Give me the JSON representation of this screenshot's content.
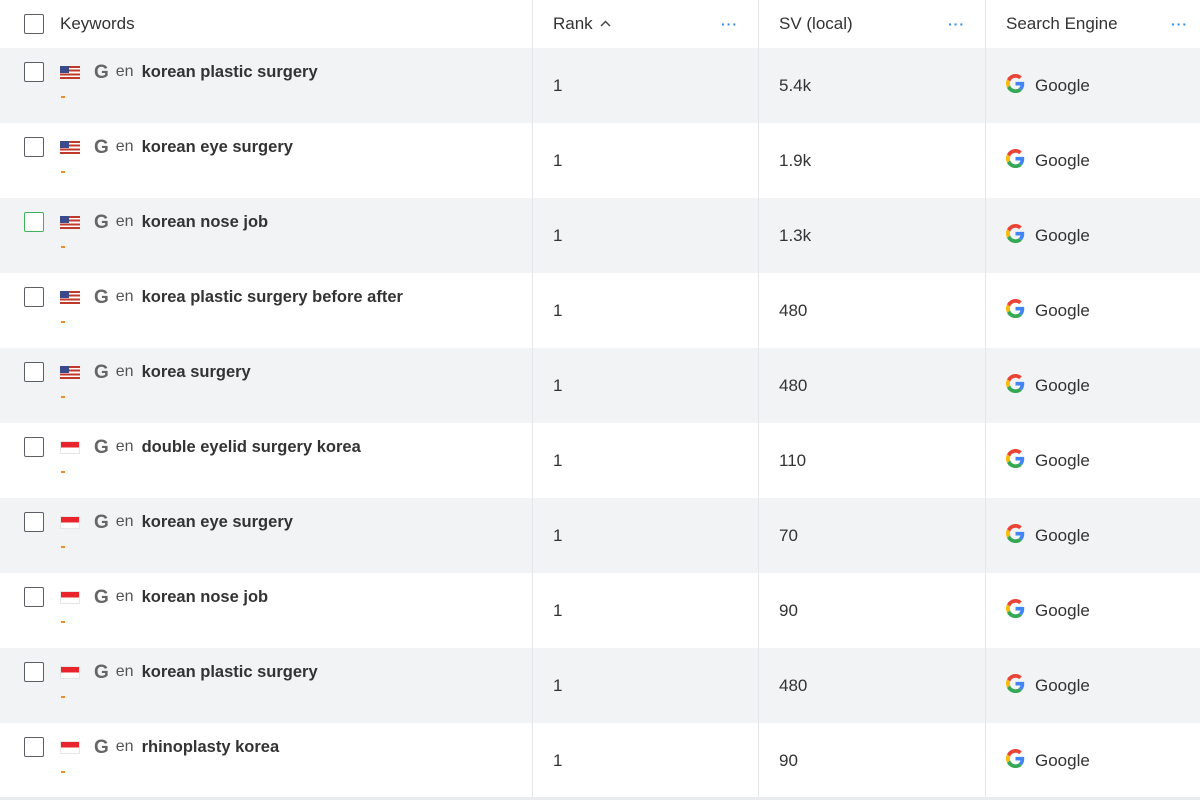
{
  "header": {
    "keywords": "Keywords",
    "rank": "Rank",
    "rank_sort_icon": "chevron-up-icon",
    "sv": "SV (local)",
    "engine": "Search Engine",
    "more_label": "···"
  },
  "colors": {
    "accent": "#2f8fe8",
    "row_shade": "#f2f3f5",
    "dash": "#f08a2c",
    "checkbox_hover": "#3db35a"
  },
  "rows": [
    {
      "flag": "us",
      "engine_mark": "G",
      "lang": "en",
      "keyword": "korean plastic surgery",
      "dash": "-",
      "rank": "1",
      "sv": "5.4k",
      "engine": "Google",
      "shaded": true
    },
    {
      "flag": "us",
      "engine_mark": "G",
      "lang": "en",
      "keyword": "korean eye surgery",
      "dash": "-",
      "rank": "1",
      "sv": "1.9k",
      "engine": "Google",
      "shaded": false
    },
    {
      "flag": "us",
      "engine_mark": "G",
      "lang": "en",
      "keyword": "korean nose job",
      "dash": "-",
      "rank": "1",
      "sv": "1.3k",
      "engine": "Google",
      "shaded": true,
      "hover": true
    },
    {
      "flag": "us",
      "engine_mark": "G",
      "lang": "en",
      "keyword": "korea plastic surgery before after",
      "dash": "-",
      "rank": "1",
      "sv": "480",
      "engine": "Google",
      "shaded": false
    },
    {
      "flag": "us",
      "engine_mark": "G",
      "lang": "en",
      "keyword": "korea surgery",
      "dash": "-",
      "rank": "1",
      "sv": "480",
      "engine": "Google",
      "shaded": true
    },
    {
      "flag": "sg",
      "engine_mark": "G",
      "lang": "en",
      "keyword": "double eyelid surgery korea",
      "dash": "-",
      "rank": "1",
      "sv": "110",
      "engine": "Google",
      "shaded": false
    },
    {
      "flag": "sg",
      "engine_mark": "G",
      "lang": "en",
      "keyword": "korean eye surgery",
      "dash": "-",
      "rank": "1",
      "sv": "70",
      "engine": "Google",
      "shaded": true
    },
    {
      "flag": "sg",
      "engine_mark": "G",
      "lang": "en",
      "keyword": "korean nose job",
      "dash": "-",
      "rank": "1",
      "sv": "90",
      "engine": "Google",
      "shaded": false
    },
    {
      "flag": "sg",
      "engine_mark": "G",
      "lang": "en",
      "keyword": "korean plastic surgery",
      "dash": "-",
      "rank": "1",
      "sv": "480",
      "engine": "Google",
      "shaded": true
    },
    {
      "flag": "sg",
      "engine_mark": "G",
      "lang": "en",
      "keyword": "rhinoplasty korea",
      "dash": "-",
      "rank": "1",
      "sv": "90",
      "engine": "Google",
      "shaded": false
    }
  ]
}
